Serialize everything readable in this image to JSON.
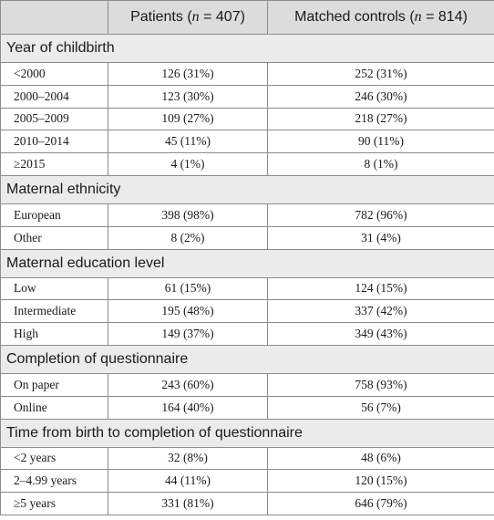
{
  "header": {
    "col1": "",
    "patients_prefix": "Patients (",
    "patients_var": "n",
    "patients_suffix": " = 407)",
    "controls_prefix": "Matched controls (",
    "controls_var": "n",
    "controls_suffix": " = 814)"
  },
  "sections": [
    {
      "title": "Year of childbirth",
      "rows": [
        {
          "label": "<2000",
          "patients": "126 (31%)",
          "controls": "252 (31%)"
        },
        {
          "label": "2000–2004",
          "patients": "123 (30%)",
          "controls": "246 (30%)"
        },
        {
          "label": "2005–2009",
          "patients": "109 (27%)",
          "controls": "218 (27%)"
        },
        {
          "label": "2010–2014",
          "patients": "45 (11%)",
          "controls": "90 (11%)"
        },
        {
          "label": "≥2015",
          "patients": "4 (1%)",
          "controls": "8 (1%)"
        }
      ]
    },
    {
      "title": "Maternal ethnicity",
      "rows": [
        {
          "label": "European",
          "patients": "398 (98%)",
          "controls": "782 (96%)"
        },
        {
          "label": "Other",
          "patients": "8 (2%)",
          "controls": "31 (4%)"
        }
      ]
    },
    {
      "title": "Maternal education level",
      "rows": [
        {
          "label": "Low",
          "patients": "61 (15%)",
          "controls": "124 (15%)"
        },
        {
          "label": "Intermediate",
          "patients": "195 (48%)",
          "controls": "337 (42%)"
        },
        {
          "label": "High",
          "patients": "149 (37%)",
          "controls": "349 (43%)"
        }
      ]
    },
    {
      "title": "Completion of questionnaire",
      "rows": [
        {
          "label": "On paper",
          "patients": "243 (60%)",
          "controls": "758 (93%)"
        },
        {
          "label": "Online",
          "patients": "164 (40%)",
          "controls": "56 (7%)"
        }
      ]
    },
    {
      "title": "Time from birth to completion of questionnaire",
      "rows": [
        {
          "label": "<2 years",
          "patients": "32 (8%)",
          "controls": "48 (6%)"
        },
        {
          "label": "2–4.99 years",
          "patients": "44 (11%)",
          "controls": "120 (15%)"
        },
        {
          "label": "≥5 years",
          "patients": "331 (81%)",
          "controls": "646 (79%)"
        }
      ]
    }
  ]
}
